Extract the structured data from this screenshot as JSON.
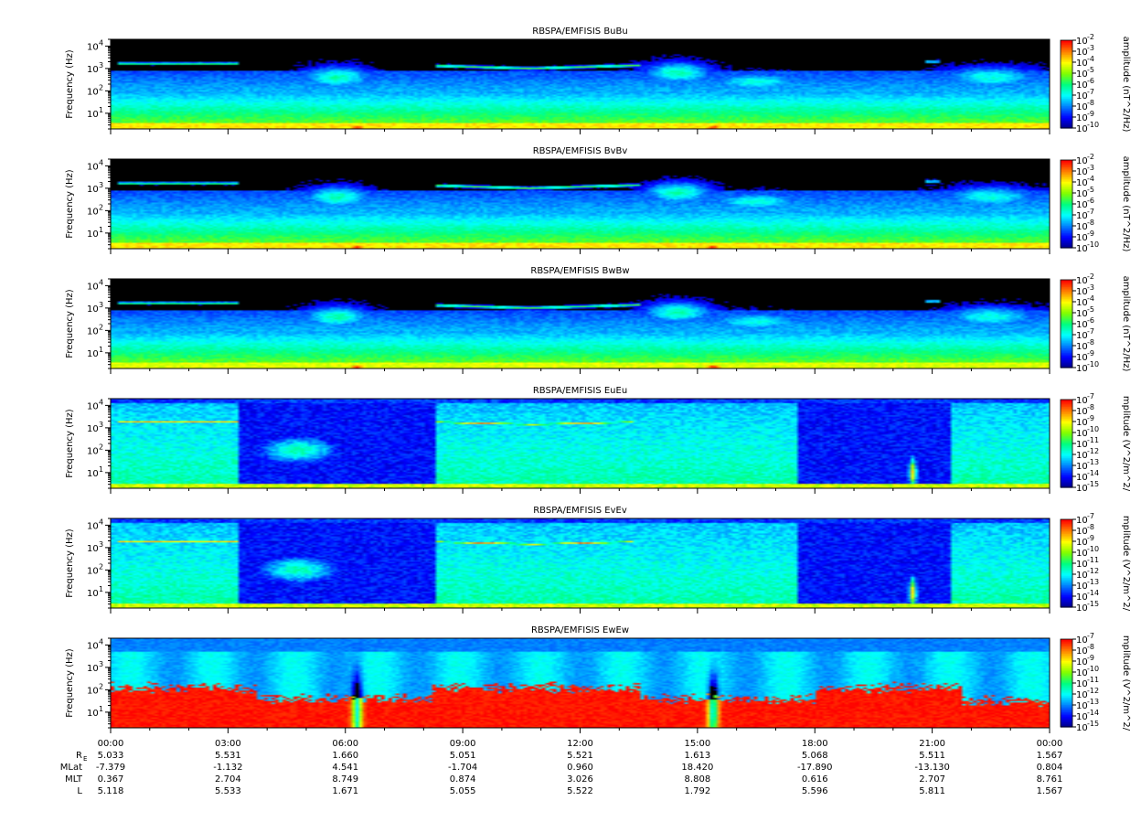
{
  "chart_data": {
    "type": "heatmap",
    "time_ticks": [
      "00:00",
      "03:00",
      "06:00",
      "09:00",
      "12:00",
      "15:00",
      "18:00",
      "21:00",
      "00:00"
    ],
    "x_range_hours": [
      0,
      24
    ],
    "panels": [
      {
        "title": "RBSPA/EMFISIS  BuBu",
        "ylabel": "Frequency (Hz)",
        "y_ticks": [
          "10",
          "10",
          "10",
          "10"
        ],
        "y_exponents": [
          "1",
          "2",
          "3",
          "4"
        ],
        "y_range_hz": [
          2,
          20000
        ],
        "y_scale": "log",
        "colorbar_label": "amplitude (nT^2/Hz)",
        "colorbar_exponents": [
          "-2",
          "-3",
          "-4",
          "-5",
          "-6",
          "-7",
          "-8",
          "-9",
          "-10"
        ],
        "colorbar_range": [
          -10,
          -2
        ],
        "kind": "B"
      },
      {
        "title": "RBSPA/EMFISIS  BvBv",
        "ylabel": "Frequency (Hz)",
        "y_ticks": [
          "10",
          "10",
          "10",
          "10"
        ],
        "y_exponents": [
          "1",
          "2",
          "3",
          "4"
        ],
        "y_range_hz": [
          2,
          20000
        ],
        "y_scale": "log",
        "colorbar_label": "amplitude (nT^2/Hz)",
        "colorbar_exponents": [
          "-2",
          "-3",
          "-4",
          "-5",
          "-6",
          "-7",
          "-8",
          "-9",
          "-10"
        ],
        "colorbar_range": [
          -10,
          -2
        ],
        "kind": "B"
      },
      {
        "title": "RBSPA/EMFISIS  BwBw",
        "ylabel": "Frequency (Hz)",
        "y_ticks": [
          "10",
          "10",
          "10",
          "10"
        ],
        "y_exponents": [
          "1",
          "2",
          "3",
          "4"
        ],
        "y_range_hz": [
          2,
          20000
        ],
        "y_scale": "log",
        "colorbar_label": "amplitude (nT^2/Hz)",
        "colorbar_exponents": [
          "-2",
          "-3",
          "-4",
          "-5",
          "-6",
          "-7",
          "-8",
          "-9",
          "-10"
        ],
        "colorbar_range": [
          -10,
          -2
        ],
        "kind": "Bw"
      },
      {
        "title": "RBSPA/EMFISIS  EuEu",
        "ylabel": "Frequency (Hz)",
        "y_ticks": [
          "10",
          "10",
          "10",
          "10"
        ],
        "y_exponents": [
          "1",
          "2",
          "3",
          "4"
        ],
        "y_range_hz": [
          2,
          20000
        ],
        "y_scale": "log",
        "colorbar_label": "mplitude (V^2/m^2/",
        "colorbar_exponents": [
          "-7",
          "-8",
          "-9",
          "-10",
          "-11",
          "-12",
          "-13",
          "-14",
          "-15"
        ],
        "colorbar_range": [
          -15,
          -7
        ],
        "kind": "E"
      },
      {
        "title": "RBSPA/EMFISIS  EvEv",
        "ylabel": "Frequency (Hz)",
        "y_ticks": [
          "10",
          "10",
          "10",
          "10"
        ],
        "y_exponents": [
          "1",
          "2",
          "3",
          "4"
        ],
        "y_range_hz": [
          2,
          20000
        ],
        "y_scale": "log",
        "colorbar_label": "mplitude (V^2/m^2/",
        "colorbar_exponents": [
          "-7",
          "-8",
          "-9",
          "-10",
          "-11",
          "-12",
          "-13",
          "-14",
          "-15"
        ],
        "colorbar_range": [
          -15,
          -7
        ],
        "kind": "E"
      },
      {
        "title": "RBSPA/EMFISIS  EwEw",
        "ylabel": "Frequency (Hz)",
        "y_ticks": [
          "10",
          "10",
          "10",
          "10"
        ],
        "y_exponents": [
          "1",
          "2",
          "3",
          "4"
        ],
        "y_range_hz": [
          2,
          20000
        ],
        "y_scale": "log",
        "colorbar_label": "mplitude (V^2/m^2/",
        "colorbar_exponents": [
          "-7",
          "-8",
          "-9",
          "-10",
          "-11",
          "-12",
          "-13",
          "-14",
          "-15"
        ],
        "colorbar_range": [
          -15,
          -7
        ],
        "kind": "Ew"
      }
    ],
    "ephemeris": {
      "rows": [
        {
          "label_main": "R",
          "label_sub": "E",
          "values": [
            "5.033",
            "5.531",
            "1.660",
            "5.051",
            "5.521",
            "1.613",
            "5.068",
            "5.511",
            "1.567"
          ]
        },
        {
          "label_main": "MLat",
          "label_sub": "",
          "values": [
            "-7.379",
            "-1.132",
            "4.541",
            "-1.704",
            "0.960",
            "18.420",
            "-17.890",
            "-13.130",
            "0.804"
          ]
        },
        {
          "label_main": "MLT",
          "label_sub": "",
          "values": [
            "0.367",
            "2.704",
            "8.749",
            "0.874",
            "3.026",
            "8.808",
            "0.616",
            "2.707",
            "8.761"
          ]
        },
        {
          "label_main": "L",
          "label_sub": "",
          "values": [
            "5.118",
            "5.533",
            "1.671",
            "5.055",
            "5.522",
            "1.792",
            "5.596",
            "5.811",
            "1.567"
          ]
        }
      ]
    },
    "colormap": [
      "#000080",
      "#0000ff",
      "#0080ff",
      "#00ffff",
      "#00ff80",
      "#80ff00",
      "#ffff00",
      "#ff8000",
      "#ff0000"
    ]
  }
}
